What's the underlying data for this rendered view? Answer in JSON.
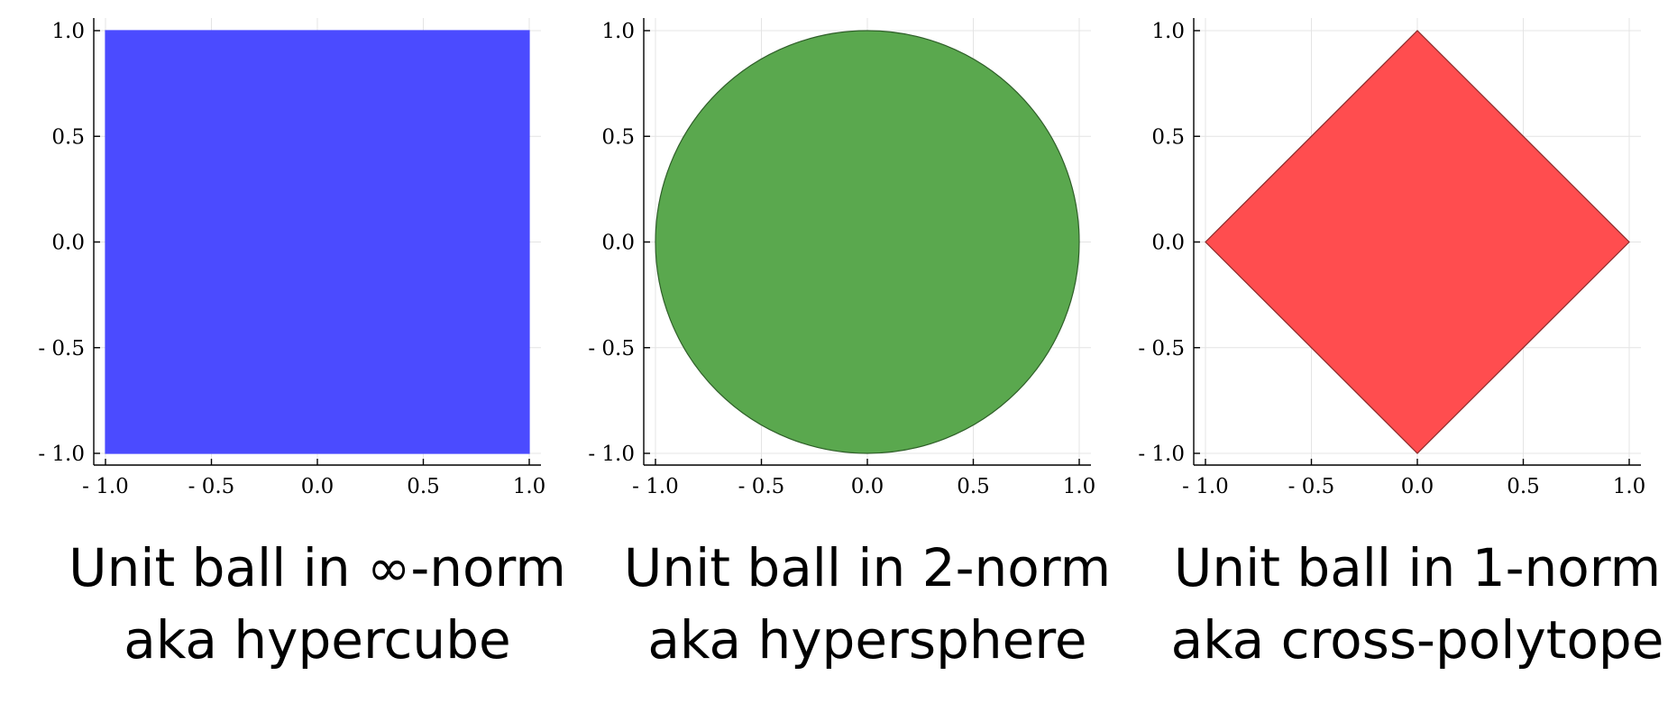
{
  "chart_data": [
    {
      "type": "area",
      "shape": "square",
      "fill": "#4b4bff",
      "stroke": "#4b4bff",
      "x": [
        -1.0,
        1.0,
        1.0,
        -1.0
      ],
      "y": [
        -1.0,
        -1.0,
        1.0,
        1.0
      ],
      "xlim": [
        -1.0,
        1.0
      ],
      "ylim": [
        -1.0,
        1.0
      ],
      "xticks": [
        -1.0,
        -0.5,
        0.0,
        0.5,
        1.0
      ],
      "yticks": [
        -1.0,
        -0.5,
        0.0,
        0.5,
        1.0
      ],
      "xtick_labels": [
        "- 1.0",
        "- 0.5",
        "0.0",
        "0.5",
        "1.0"
      ],
      "ytick_labels": [
        "- 1.0",
        "- 0.5",
        "0.0",
        "0.5",
        "1.0"
      ],
      "grid": true,
      "caption": [
        "Unit ball in ∞-norm",
        "aka hypercube"
      ]
    },
    {
      "type": "area",
      "shape": "circle",
      "fill": "#5aa84e",
      "stroke": "#2f5f29",
      "center": [
        0.0,
        0.0
      ],
      "radius": 1.0,
      "xlim": [
        -1.0,
        1.0
      ],
      "ylim": [
        -1.0,
        1.0
      ],
      "xticks": [
        -1.0,
        -0.5,
        0.0,
        0.5,
        1.0
      ],
      "yticks": [
        -1.0,
        -0.5,
        0.0,
        0.5,
        1.0
      ],
      "xtick_labels": [
        "- 1.0",
        "- 0.5",
        "0.0",
        "0.5",
        "1.0"
      ],
      "ytick_labels": [
        "- 1.0",
        "- 0.5",
        "0.0",
        "0.5",
        "1.0"
      ],
      "grid": true,
      "caption": [
        "Unit ball in 2-norm",
        "aka hypersphere"
      ]
    },
    {
      "type": "area",
      "shape": "diamond",
      "fill": "#ff4d4f",
      "stroke": "#8a2a2a",
      "x": [
        -1.0,
        0.0,
        1.0,
        0.0
      ],
      "y": [
        0.0,
        1.0,
        0.0,
        -1.0
      ],
      "xlim": [
        -1.0,
        1.0
      ],
      "ylim": [
        -1.0,
        1.0
      ],
      "xticks": [
        -1.0,
        -0.5,
        0.0,
        0.5,
        1.0
      ],
      "yticks": [
        -1.0,
        -0.5,
        0.0,
        0.5,
        1.0
      ],
      "xtick_labels": [
        "- 1.0",
        "- 0.5",
        "0.0",
        "0.5",
        "1.0"
      ],
      "ytick_labels": [
        "- 1.0",
        "- 0.5",
        "0.0",
        "0.5",
        "1.0"
      ],
      "grid": true,
      "caption": [
        "Unit ball in 1-norm",
        "aka cross-polytope"
      ]
    }
  ]
}
